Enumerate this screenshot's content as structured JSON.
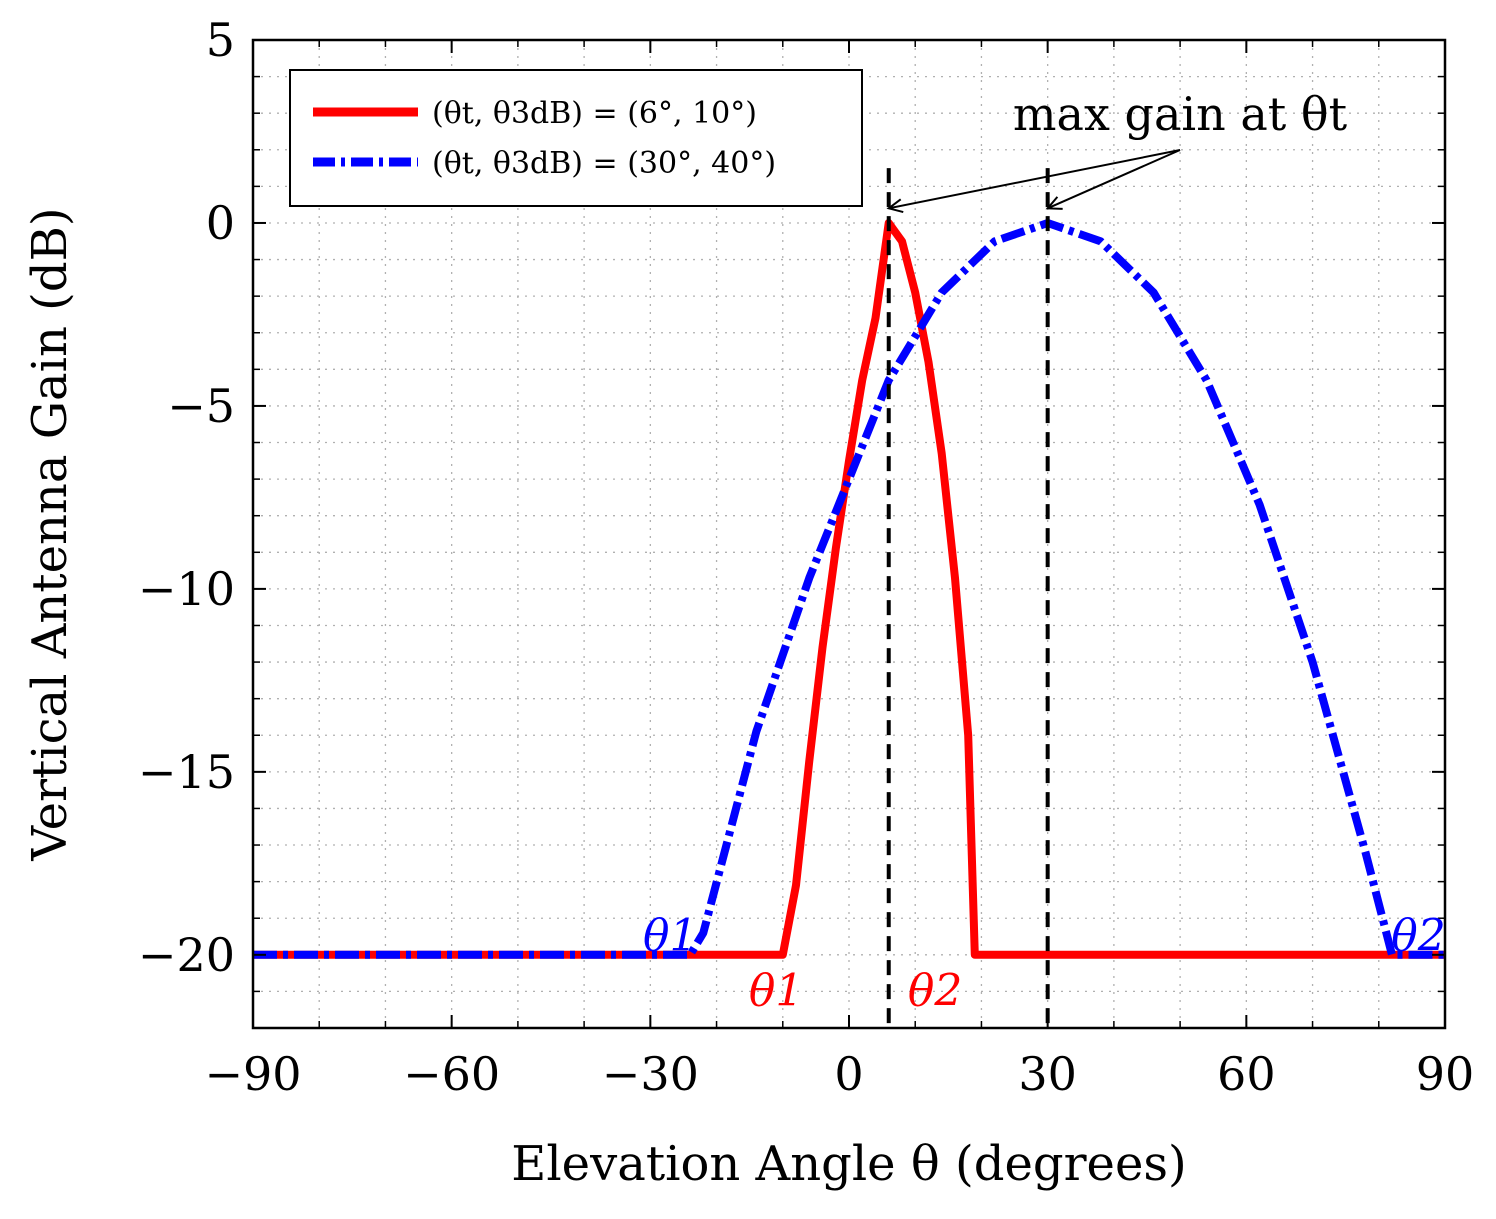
{
  "chart_data": {
    "type": "line",
    "xlabel": "Elevation Angle θ (degrees)",
    "ylabel": "Vertical Antenna Gain (dB)",
    "xlim": [
      -90,
      90
    ],
    "ylim": [
      -22,
      5
    ],
    "x_ticks": [
      -90,
      -60,
      -30,
      0,
      30,
      60,
      90
    ],
    "x_tick_labels": [
      "−90",
      "−60",
      "−30",
      "0",
      "30",
      "60",
      "90"
    ],
    "y_ticks": [
      -20,
      -15,
      -10,
      -5,
      0,
      5
    ],
    "y_tick_labels": [
      "−20",
      "−15",
      "−10",
      "−5",
      "0",
      "5"
    ],
    "grid": true,
    "legend_position": "top-left",
    "series": [
      {
        "name": "(θt, θ3dB) = (6°, 10°)",
        "color": "#ff0000",
        "style": "solid",
        "theta_t": 6,
        "theta_3dB": 10,
        "floor": -20,
        "points": [
          [
            -90,
            -20
          ],
          [
            -10,
            -20
          ],
          [
            -8,
            -18.1
          ],
          [
            -6,
            -14.7
          ],
          [
            -4,
            -11.6
          ],
          [
            -2,
            -8.9
          ],
          [
            0,
            -6.5
          ],
          [
            2,
            -4.3
          ],
          [
            4,
            -2.6
          ],
          [
            6,
            0.0
          ],
          [
            8,
            -0.5
          ],
          [
            10,
            -1.9
          ],
          [
            12,
            -3.8
          ],
          [
            14,
            -6.3
          ],
          [
            16,
            -9.7
          ],
          [
            18,
            -14.0
          ],
          [
            19,
            -20
          ],
          [
            90,
            -20
          ]
        ]
      },
      {
        "name": "(θt, θ3dB) = (30°, 40°)",
        "color": "#0000ff",
        "style": "dashdot",
        "theta_t": 30,
        "theta_3dB": 40,
        "floor": -20,
        "points": [
          [
            -90,
            -20
          ],
          [
            -24,
            -20
          ],
          [
            -22,
            -19.4
          ],
          [
            -14,
            -13.9
          ],
          [
            -6,
            -9.7
          ],
          [
            0,
            -7.0
          ],
          [
            6,
            -4.3
          ],
          [
            14,
            -1.9
          ],
          [
            22,
            -0.5
          ],
          [
            30,
            0.0
          ],
          [
            38,
            -0.5
          ],
          [
            46,
            -1.9
          ],
          [
            54,
            -4.3
          ],
          [
            62,
            -7.7
          ],
          [
            70,
            -12.0
          ],
          [
            78,
            -17.2
          ],
          [
            82,
            -20
          ],
          [
            90,
            -20
          ]
        ]
      }
    ],
    "vertical_markers": [
      6,
      30
    ],
    "annotation": {
      "text": "max gain at θt",
      "targets": [
        [
          6,
          0.4
        ],
        [
          30,
          0.4
        ]
      ]
    },
    "point_labels": [
      {
        "text": "θ1",
        "x": -11,
        "y": -21,
        "color": "#ff0000"
      },
      {
        "text": "θ2",
        "x": 13,
        "y": -21,
        "color": "#ff0000"
      },
      {
        "text": "θ1",
        "x": -27,
        "y": -19.5,
        "color": "#0000ff"
      },
      {
        "text": "θ2",
        "x": 86,
        "y": -19.5,
        "color": "#0000ff"
      }
    ]
  }
}
